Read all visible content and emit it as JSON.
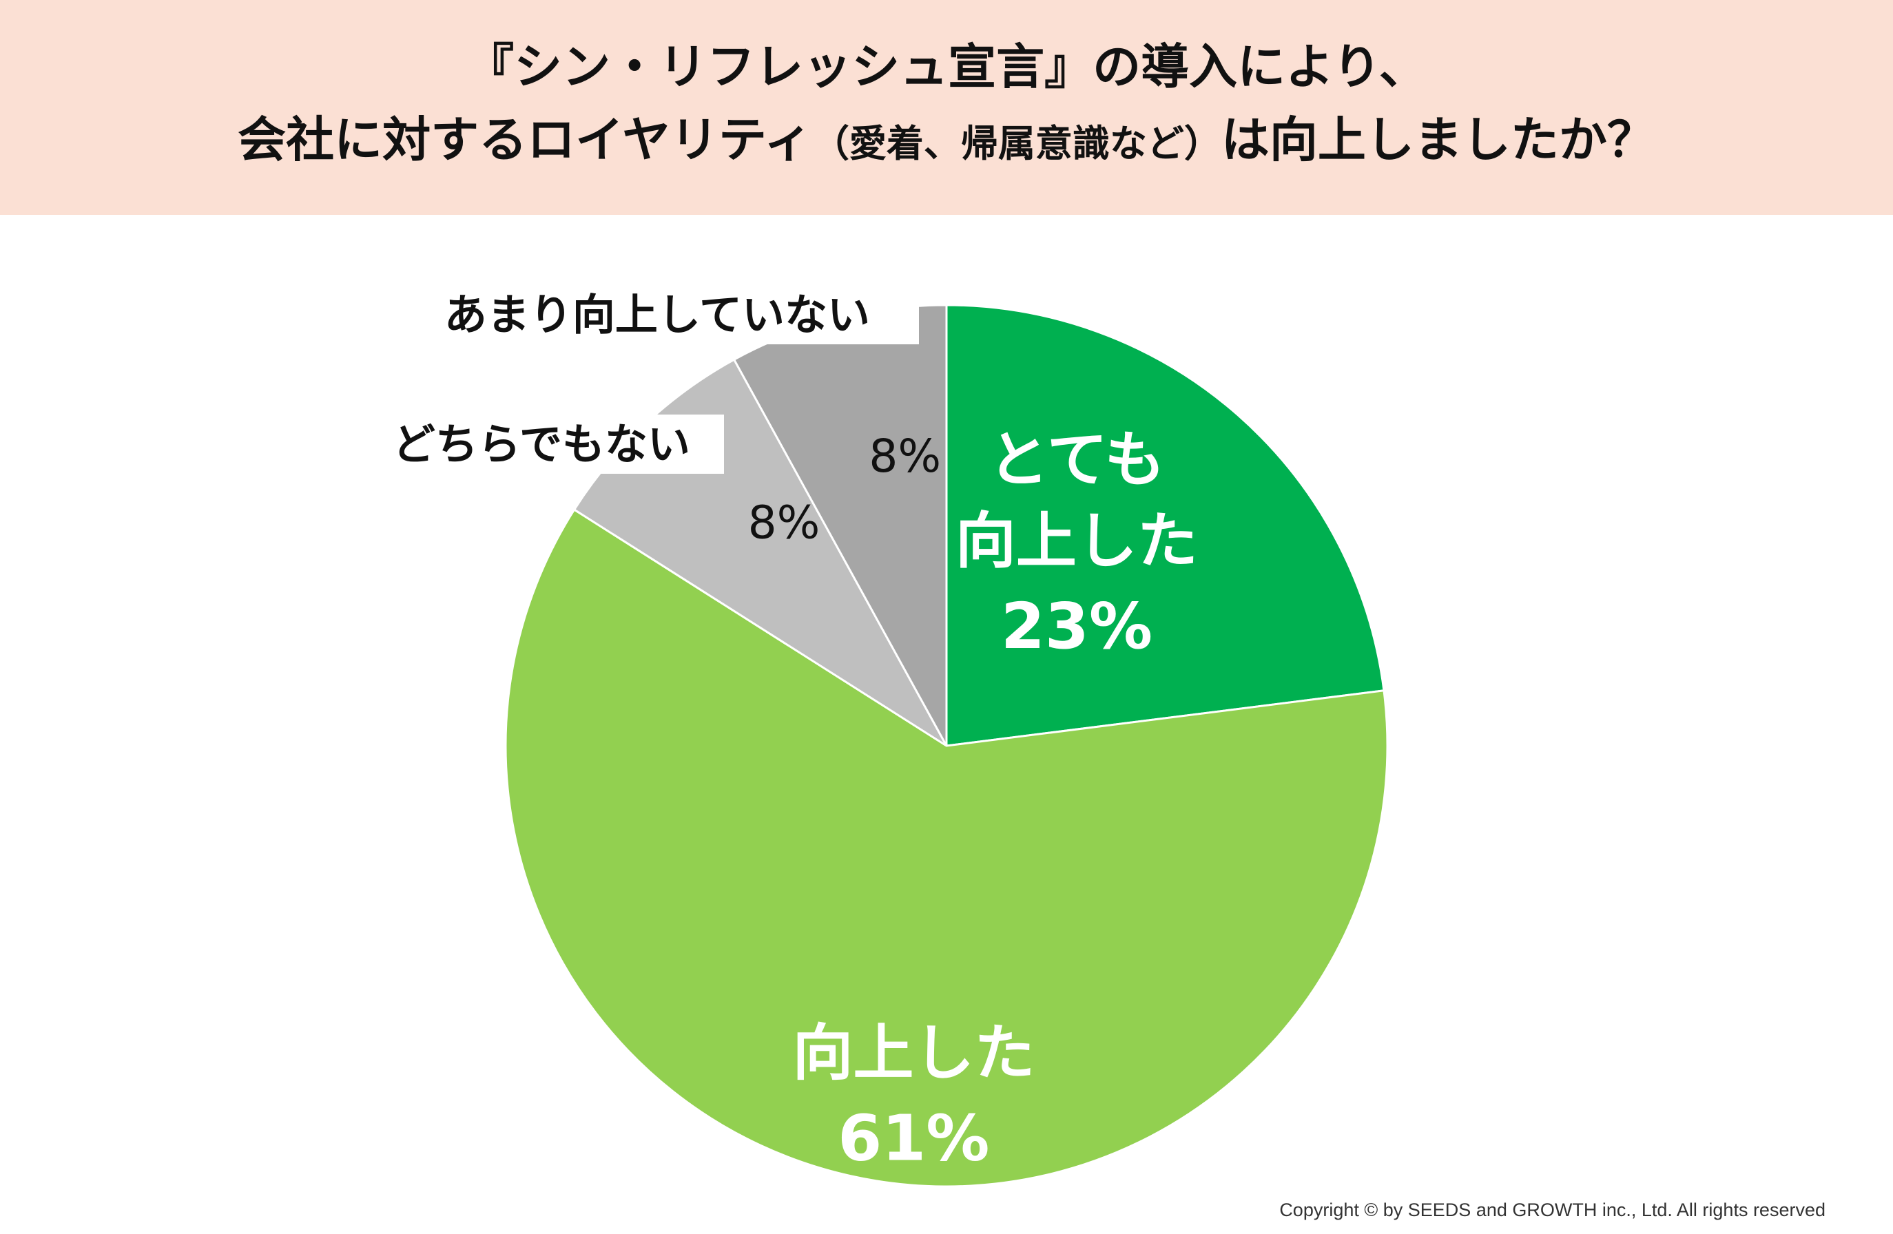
{
  "title": {
    "line1": "『シン・リフレッシュ宣言』の導入により、",
    "line2_main": "会社に対するロイヤリティ",
    "line2_paren": "（愛着、帰属意識など）",
    "line2_end": "は向上しましたか？"
  },
  "chart_data": {
    "type": "pie",
    "start_angle_deg": 0,
    "direction": "clockwise",
    "slices": [
      {
        "label": "とても\n向上した",
        "value": 23,
        "value_label": "23%",
        "color": "#00b050"
      },
      {
        "label": "向上した",
        "value": 61,
        "value_label": "61%",
        "color": "#92d050"
      },
      {
        "label": "どちらでもない",
        "value": 8,
        "value_label": "8%",
        "color": "#bfbfbf"
      },
      {
        "label": "あまり向上していない",
        "value": 8,
        "value_label": "8%",
        "color": "#a6a6a6"
      }
    ]
  },
  "footer": {
    "copyright": "Copyright © by SEEDS and GROWTH inc., Ltd. All rights reserved"
  },
  "colors": {
    "title_background": "#fbe0d4",
    "inside_label_text": "#ffffff",
    "outside_label_text": "#111111"
  }
}
